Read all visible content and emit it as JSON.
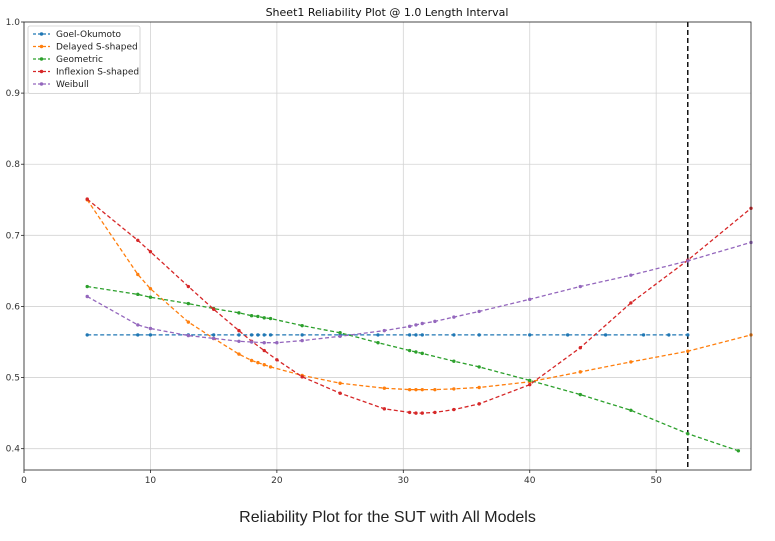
{
  "caption": "Reliability Plot for the SUT with All Models",
  "chart_data": {
    "type": "line",
    "title": "Sheet1 Reliability Plot @ 1.0 Length Interval",
    "xlabel": "",
    "ylabel": "",
    "xlim": [
      0,
      57.5
    ],
    "ylim": [
      0.37,
      1.0
    ],
    "xticks": [
      0,
      10,
      20,
      30,
      40,
      50
    ],
    "yticks": [
      0.4,
      0.5,
      0.6,
      0.7,
      0.8,
      0.9,
      1.0
    ],
    "grid": true,
    "legend": "top-left",
    "vline": {
      "x": 52.5,
      "color": "#000000",
      "style": "dashed"
    },
    "series": [
      {
        "name": "Goel-Okumoto",
        "color": "#1f77b4",
        "x": [
          5,
          9,
          10,
          13,
          15,
          17,
          18,
          18.5,
          19,
          19.5,
          22,
          25,
          28,
          30.5,
          31,
          31.5,
          34,
          36,
          40,
          43,
          46,
          49,
          51,
          52.5
        ],
        "y": [
          0.56,
          0.56,
          0.56,
          0.56,
          0.56,
          0.56,
          0.56,
          0.56,
          0.56,
          0.56,
          0.56,
          0.56,
          0.56,
          0.56,
          0.56,
          0.56,
          0.56,
          0.56,
          0.56,
          0.56,
          0.56,
          0.56,
          0.56,
          0.56
        ]
      },
      {
        "name": "Delayed S-shaped",
        "color": "#ff7f0e",
        "x": [
          5,
          9,
          10,
          13,
          15,
          17,
          18,
          18.5,
          19,
          19.5,
          22,
          25,
          28.5,
          30.5,
          31,
          31.5,
          32.5,
          34,
          36,
          40,
          44,
          48,
          52.5,
          57.5
        ],
        "y": [
          0.75,
          0.645,
          0.625,
          0.578,
          0.555,
          0.533,
          0.524,
          0.521,
          0.518,
          0.515,
          0.503,
          0.492,
          0.485,
          0.483,
          0.483,
          0.483,
          0.483,
          0.484,
          0.486,
          0.494,
          0.508,
          0.522,
          0.537,
          0.56
        ]
      },
      {
        "name": "Geometric",
        "color": "#2ca02c",
        "x": [
          5,
          9,
          10,
          13,
          15,
          17,
          18,
          18.5,
          19,
          19.5,
          22,
          25,
          28,
          30.5,
          31,
          31.5,
          34,
          36,
          40,
          44,
          48,
          52.5,
          56.5
        ],
        "y": [
          0.628,
          0.617,
          0.613,
          0.604,
          0.597,
          0.591,
          0.587,
          0.586,
          0.584,
          0.583,
          0.573,
          0.563,
          0.549,
          0.538,
          0.536,
          0.534,
          0.523,
          0.515,
          0.496,
          0.476,
          0.454,
          0.421,
          0.397
        ]
      },
      {
        "name": "Inflexion S-shaped",
        "color": "#d62728",
        "x": [
          5,
          9,
          10,
          13,
          15,
          17,
          18,
          19,
          20,
          22,
          25,
          28.5,
          30.5,
          31,
          31.5,
          32.5,
          34,
          36,
          40,
          44,
          48,
          52.5,
          57.5
        ],
        "y": [
          0.751,
          0.693,
          0.677,
          0.628,
          0.596,
          0.566,
          0.551,
          0.538,
          0.525,
          0.501,
          0.478,
          0.456,
          0.451,
          0.45,
          0.45,
          0.451,
          0.455,
          0.463,
          0.49,
          0.542,
          0.605,
          0.665,
          0.738
        ]
      },
      {
        "name": "Weibull",
        "color": "#9467bd",
        "x": [
          5,
          9,
          10,
          13,
          15,
          17,
          18,
          19,
          20,
          22,
          25,
          28.5,
          30.5,
          31,
          31.5,
          32.5,
          34,
          36,
          40,
          44,
          48,
          52.5,
          57.5
        ],
        "y": [
          0.614,
          0.574,
          0.569,
          0.559,
          0.555,
          0.551,
          0.55,
          0.549,
          0.549,
          0.552,
          0.558,
          0.566,
          0.572,
          0.574,
          0.576,
          0.579,
          0.585,
          0.593,
          0.61,
          0.628,
          0.644,
          0.664,
          0.69
        ]
      }
    ]
  }
}
